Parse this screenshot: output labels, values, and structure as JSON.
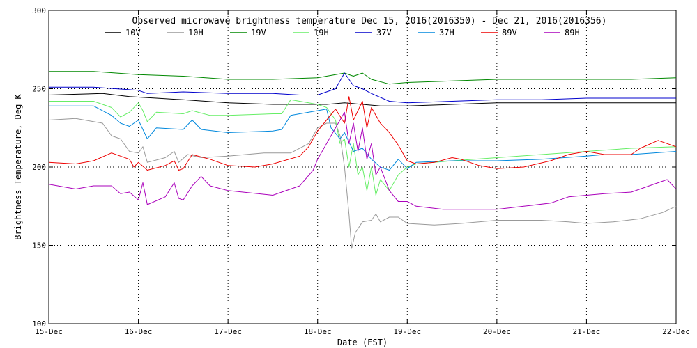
{
  "chart_data": {
    "type": "line",
    "title": "Observed microwave brightness temperature Dec 15, 2016(2016350) - Dec 21, 2016(2016356)",
    "xlabel": "Date (EST)",
    "ylabel": "Brightness Temperature, Deg K",
    "xlim": [
      0,
      7
    ],
    "ylim": [
      100,
      300
    ],
    "x_ticks": [
      {
        "v": 0,
        "label": "15-Dec"
      },
      {
        "v": 1,
        "label": "16-Dec"
      },
      {
        "v": 2,
        "label": "17-Dec"
      },
      {
        "v": 3,
        "label": "18-Dec"
      },
      {
        "v": 4,
        "label": "19-Dec"
      },
      {
        "v": 5,
        "label": "20-Dec"
      },
      {
        "v": 6,
        "label": "21-Dec"
      },
      {
        "v": 7,
        "label": "22-Dec"
      }
    ],
    "y_ticks": [
      {
        "v": 100,
        "label": "100"
      },
      {
        "v": 150,
        "label": "150"
      },
      {
        "v": 200,
        "label": "200"
      },
      {
        "v": 250,
        "label": "250"
      },
      {
        "v": 300,
        "label": "300"
      }
    ],
    "gridlines": "dotted",
    "legend_position": "top",
    "series": [
      {
        "name": "10V",
        "color": "#000000",
        "points": [
          [
            0,
            246
          ],
          [
            0.6,
            247
          ],
          [
            0.9,
            245
          ],
          [
            1.2,
            244
          ],
          [
            1.5,
            243
          ],
          [
            2.0,
            241
          ],
          [
            2.5,
            240
          ],
          [
            2.8,
            240
          ],
          [
            3.1,
            240
          ],
          [
            3.3,
            241
          ],
          [
            3.5,
            240
          ],
          [
            3.7,
            239
          ],
          [
            4.0,
            239
          ],
          [
            4.5,
            240
          ],
          [
            5.0,
            241
          ],
          [
            5.5,
            241
          ],
          [
            6.0,
            241
          ],
          [
            6.5,
            241
          ],
          [
            7.0,
            241
          ]
        ]
      },
      {
        "name": "10H",
        "color": "#999999",
        "points": [
          [
            0,
            230
          ],
          [
            0.3,
            231
          ],
          [
            0.6,
            228
          ],
          [
            0.7,
            220
          ],
          [
            0.8,
            218
          ],
          [
            0.9,
            210
          ],
          [
            1.0,
            209
          ],
          [
            1.05,
            213
          ],
          [
            1.1,
            203
          ],
          [
            1.3,
            206
          ],
          [
            1.4,
            210
          ],
          [
            1.45,
            203
          ],
          [
            1.55,
            208
          ],
          [
            1.7,
            206
          ],
          [
            2.0,
            207
          ],
          [
            2.4,
            209
          ],
          [
            2.7,
            209
          ],
          [
            2.9,
            215
          ],
          [
            3.0,
            225
          ],
          [
            3.1,
            228
          ],
          [
            3.2,
            228
          ],
          [
            3.25,
            220
          ],
          [
            3.3,
            200
          ],
          [
            3.35,
            170
          ],
          [
            3.38,
            148
          ],
          [
            3.42,
            158
          ],
          [
            3.5,
            165
          ],
          [
            3.6,
            166
          ],
          [
            3.65,
            170
          ],
          [
            3.7,
            165
          ],
          [
            3.8,
            168
          ],
          [
            3.9,
            168
          ],
          [
            4.0,
            164
          ],
          [
            4.3,
            163
          ],
          [
            4.6,
            164
          ],
          [
            5.0,
            166
          ],
          [
            5.5,
            166
          ],
          [
            5.8,
            165
          ],
          [
            6.0,
            164
          ],
          [
            6.3,
            165
          ],
          [
            6.6,
            167
          ],
          [
            6.85,
            171
          ],
          [
            7.0,
            175
          ]
        ]
      },
      {
        "name": "19V",
        "color": "#008800",
        "points": [
          [
            0,
            261
          ],
          [
            0.5,
            261
          ],
          [
            1.0,
            259
          ],
          [
            1.5,
            258
          ],
          [
            2.0,
            256
          ],
          [
            2.5,
            256
          ],
          [
            3.0,
            257
          ],
          [
            3.2,
            259
          ],
          [
            3.3,
            260
          ],
          [
            3.4,
            258
          ],
          [
            3.5,
            260
          ],
          [
            3.6,
            256
          ],
          [
            3.8,
            253
          ],
          [
            4.0,
            254
          ],
          [
            4.5,
            255
          ],
          [
            5.0,
            256
          ],
          [
            5.5,
            256
          ],
          [
            6.0,
            256
          ],
          [
            6.5,
            256
          ],
          [
            7.0,
            257
          ]
        ]
      },
      {
        "name": "19H",
        "color": "#66ee66",
        "points": [
          [
            0,
            242
          ],
          [
            0.5,
            242
          ],
          [
            0.7,
            238
          ],
          [
            0.8,
            232
          ],
          [
            0.9,
            235
          ],
          [
            1.0,
            241
          ],
          [
            1.05,
            236
          ],
          [
            1.1,
            229
          ],
          [
            1.2,
            235
          ],
          [
            1.5,
            234
          ],
          [
            1.6,
            236
          ],
          [
            1.8,
            233
          ],
          [
            2.0,
            233
          ],
          [
            2.5,
            234
          ],
          [
            2.6,
            234
          ],
          [
            2.7,
            243
          ],
          [
            3.0,
            240
          ],
          [
            3.1,
            238
          ],
          [
            3.2,
            230
          ],
          [
            3.25,
            215
          ],
          [
            3.3,
            218
          ],
          [
            3.35,
            200
          ],
          [
            3.4,
            215
          ],
          [
            3.45,
            195
          ],
          [
            3.5,
            200
          ],
          [
            3.55,
            185
          ],
          [
            3.6,
            200
          ],
          [
            3.65,
            182
          ],
          [
            3.7,
            192
          ],
          [
            3.8,
            185
          ],
          [
            3.9,
            195
          ],
          [
            4.0,
            200
          ],
          [
            4.1,
            202
          ],
          [
            4.5,
            204
          ],
          [
            5.0,
            206
          ],
          [
            5.5,
            208
          ],
          [
            6.0,
            210
          ],
          [
            6.5,
            212
          ],
          [
            7.0,
            213
          ]
        ]
      },
      {
        "name": "37V",
        "color": "#0000cc",
        "points": [
          [
            0,
            251
          ],
          [
            0.5,
            251
          ],
          [
            1.0,
            249
          ],
          [
            1.1,
            247
          ],
          [
            1.5,
            248
          ],
          [
            2.0,
            247
          ],
          [
            2.5,
            247
          ],
          [
            2.8,
            246
          ],
          [
            3.0,
            246
          ],
          [
            3.2,
            250
          ],
          [
            3.3,
            260
          ],
          [
            3.4,
            252
          ],
          [
            3.5,
            250
          ],
          [
            3.6,
            247
          ],
          [
            3.8,
            242
          ],
          [
            4.0,
            241
          ],
          [
            4.5,
            242
          ],
          [
            5.0,
            243
          ],
          [
            5.5,
            243
          ],
          [
            6.0,
            244
          ],
          [
            6.5,
            244
          ],
          [
            7.0,
            244
          ]
        ]
      },
      {
        "name": "37H",
        "color": "#0088dd",
        "points": [
          [
            0,
            239
          ],
          [
            0.5,
            239
          ],
          [
            0.7,
            233
          ],
          [
            0.8,
            228
          ],
          [
            0.9,
            226
          ],
          [
            1.0,
            230
          ],
          [
            1.1,
            218
          ],
          [
            1.2,
            225
          ],
          [
            1.5,
            224
          ],
          [
            1.6,
            230
          ],
          [
            1.7,
            224
          ],
          [
            2.0,
            222
          ],
          [
            2.5,
            223
          ],
          [
            2.6,
            224
          ],
          [
            2.7,
            233
          ],
          [
            2.9,
            235
          ],
          [
            3.0,
            236
          ],
          [
            3.1,
            237
          ],
          [
            3.15,
            225
          ],
          [
            3.25,
            218
          ],
          [
            3.3,
            222
          ],
          [
            3.4,
            210
          ],
          [
            3.5,
            212
          ],
          [
            3.6,
            205
          ],
          [
            3.7,
            200
          ],
          [
            3.8,
            198
          ],
          [
            3.9,
            205
          ],
          [
            4.0,
            199
          ],
          [
            4.1,
            203
          ],
          [
            4.5,
            204
          ],
          [
            5.0,
            204
          ],
          [
            5.5,
            205
          ],
          [
            6.0,
            207
          ],
          [
            6.2,
            208
          ],
          [
            6.5,
            208
          ],
          [
            7.0,
            210
          ]
        ]
      },
      {
        "name": "89V",
        "color": "#ee0000",
        "points": [
          [
            0,
            203
          ],
          [
            0.3,
            202
          ],
          [
            0.5,
            204
          ],
          [
            0.7,
            209
          ],
          [
            0.9,
            205
          ],
          [
            0.95,
            200
          ],
          [
            1.0,
            203
          ],
          [
            1.1,
            198
          ],
          [
            1.3,
            201
          ],
          [
            1.4,
            204
          ],
          [
            1.45,
            198
          ],
          [
            1.5,
            199
          ],
          [
            1.6,
            208
          ],
          [
            1.8,
            205
          ],
          [
            2.0,
            201
          ],
          [
            2.3,
            200
          ],
          [
            2.5,
            202
          ],
          [
            2.8,
            207
          ],
          [
            2.9,
            213
          ],
          [
            3.0,
            223
          ],
          [
            3.1,
            230
          ],
          [
            3.2,
            237
          ],
          [
            3.3,
            228
          ],
          [
            3.35,
            245
          ],
          [
            3.4,
            230
          ],
          [
            3.5,
            242
          ],
          [
            3.55,
            225
          ],
          [
            3.6,
            238
          ],
          [
            3.7,
            228
          ],
          [
            3.8,
            222
          ],
          [
            3.9,
            214
          ],
          [
            4.0,
            204
          ],
          [
            4.1,
            202
          ],
          [
            4.3,
            203
          ],
          [
            4.5,
            206
          ],
          [
            4.6,
            205
          ],
          [
            4.8,
            201
          ],
          [
            5.0,
            199
          ],
          [
            5.3,
            200
          ],
          [
            5.6,
            204
          ],
          [
            5.8,
            208
          ],
          [
            6.0,
            210
          ],
          [
            6.2,
            208
          ],
          [
            6.5,
            208
          ],
          [
            6.6,
            212
          ],
          [
            6.8,
            217
          ],
          [
            7.0,
            213
          ]
        ]
      },
      {
        "name": "89H",
        "color": "#aa00bb",
        "points": [
          [
            0,
            189
          ],
          [
            0.3,
            186
          ],
          [
            0.5,
            188
          ],
          [
            0.7,
            188
          ],
          [
            0.8,
            183
          ],
          [
            0.9,
            184
          ],
          [
            1.0,
            179
          ],
          [
            1.05,
            190
          ],
          [
            1.1,
            176
          ],
          [
            1.3,
            181
          ],
          [
            1.4,
            190
          ],
          [
            1.45,
            180
          ],
          [
            1.5,
            179
          ],
          [
            1.6,
            188
          ],
          [
            1.7,
            194
          ],
          [
            1.8,
            188
          ],
          [
            2.0,
            185
          ],
          [
            2.5,
            182
          ],
          [
            2.8,
            188
          ],
          [
            2.95,
            198
          ],
          [
            3.0,
            205
          ],
          [
            3.1,
            215
          ],
          [
            3.2,
            225
          ],
          [
            3.3,
            235
          ],
          [
            3.35,
            215
          ],
          [
            3.4,
            228
          ],
          [
            3.45,
            210
          ],
          [
            3.5,
            225
          ],
          [
            3.55,
            205
          ],
          [
            3.6,
            215
          ],
          [
            3.65,
            195
          ],
          [
            3.7,
            200
          ],
          [
            3.8,
            185
          ],
          [
            3.9,
            178
          ],
          [
            4.0,
            178
          ],
          [
            4.1,
            175
          ],
          [
            4.4,
            173
          ],
          [
            4.7,
            173
          ],
          [
            5.0,
            173
          ],
          [
            5.3,
            175
          ],
          [
            5.6,
            177
          ],
          [
            5.8,
            181
          ],
          [
            6.0,
            182
          ],
          [
            6.2,
            183
          ],
          [
            6.5,
            184
          ],
          [
            6.7,
            188
          ],
          [
            6.9,
            192
          ],
          [
            7.0,
            186
          ]
        ]
      }
    ]
  }
}
